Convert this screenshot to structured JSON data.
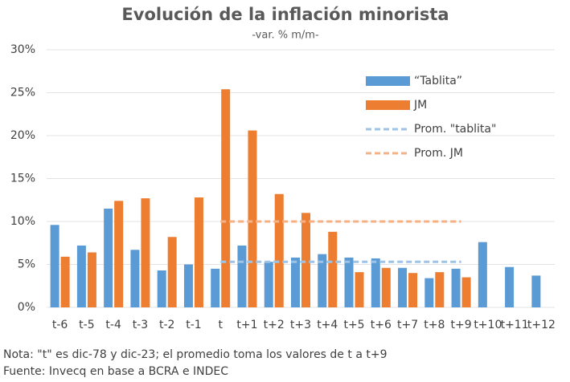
{
  "chart_data": {
    "type": "bar",
    "title": "Evolución de la inflación minorista",
    "subtitle": "-var. % m/m-",
    "categories": [
      "t-6",
      "t-5",
      "t-4",
      "t-3",
      "t-2",
      "t-1",
      "t",
      "t+1",
      "t+2",
      "t+3",
      "t+4",
      "t+5",
      "t+6",
      "t+7",
      "t+8",
      "t+9",
      "t+10",
      "t+11",
      "t+12"
    ],
    "series": [
      {
        "name": "“Tablita”",
        "type": "bar",
        "color": "#5b9bd5",
        "values": [
          9.6,
          7.2,
          11.5,
          6.7,
          4.3,
          5.0,
          4.5,
          7.2,
          5.3,
          5.8,
          6.2,
          5.8,
          5.7,
          4.6,
          3.4,
          4.5,
          7.6,
          4.7,
          3.7
        ]
      },
      {
        "name": "JM",
        "type": "bar",
        "color": "#ed7d31",
        "values": [
          5.9,
          6.4,
          12.4,
          12.7,
          8.2,
          12.8,
          25.4,
          20.6,
          13.2,
          11.0,
          8.8,
          4.1,
          4.6,
          4.0,
          4.1,
          3.5,
          null,
          null,
          null
        ]
      },
      {
        "name": "Prom. \"tablita\"",
        "type": "line",
        "dash": true,
        "color": "#9dc3e6",
        "values": [
          null,
          null,
          null,
          null,
          null,
          null,
          5.3,
          5.3,
          5.3,
          5.3,
          5.3,
          5.3,
          5.3,
          5.3,
          5.3,
          5.3,
          null,
          null,
          null
        ]
      },
      {
        "name": "Prom. JM",
        "type": "line",
        "dash": true,
        "color": "#f4b183",
        "values": [
          null,
          null,
          null,
          null,
          null,
          null,
          10.0,
          10.0,
          10.0,
          10.0,
          10.0,
          10.0,
          10.0,
          10.0,
          10.0,
          10.0,
          null,
          null,
          null
        ]
      }
    ],
    "ylim": [
      0,
      30
    ],
    "yticks": [
      {
        "value": 0,
        "label": "0%"
      },
      {
        "value": 5,
        "label": "5%"
      },
      {
        "value": 10,
        "label": "10%"
      },
      {
        "value": 15,
        "label": "15%"
      },
      {
        "value": 20,
        "label": "20%"
      },
      {
        "value": 25,
        "label": "25%"
      },
      {
        "value": 30,
        "label": "30%"
      }
    ],
    "grid": true,
    "legend": "upper right",
    "notes": [
      "Nota: \"t\" es dic-78 y dic-23; el promedio toma los valores de t a t+9",
      "Fuente: Invecq en base a BCRA e INDEC"
    ]
  }
}
